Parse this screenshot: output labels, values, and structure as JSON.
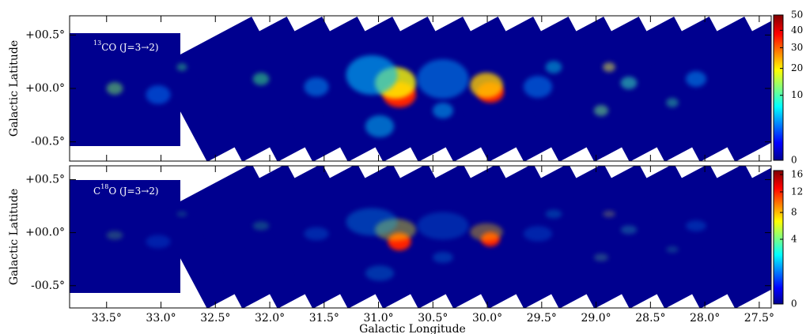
{
  "chart_data": [
    {
      "type": "map",
      "label_parts": [
        {
          "text": "13",
          "sup": true
        },
        {
          "text": "CO (J=3→2)"
        }
      ],
      "ylabel": "Galactic Latitude",
      "xlim": [
        33.84,
        27.39
      ],
      "ylim": [
        -0.68,
        0.68
      ],
      "yticks": [
        {
          "value": 0.5,
          "label": "+00.5°"
        },
        {
          "value": 0,
          "label": "+00.0°"
        },
        {
          "value": -0.5,
          "label": "-00.5°"
        }
      ],
      "clim": [
        0,
        50
      ],
      "colorbar_scale": "sqrt",
      "cticks": [
        0,
        10,
        20,
        30,
        40,
        50
      ],
      "colormap": "jet"
    },
    {
      "type": "map",
      "label_parts": [
        {
          "text": "C"
        },
        {
          "text": "18",
          "sup": true
        },
        {
          "text": "O (J=3→2)"
        }
      ],
      "ylabel": "Galactic Latitude",
      "xlim": [
        33.84,
        27.39
      ],
      "ylim": [
        -0.71,
        0.63
      ],
      "xlabel": "Galactic Longitude",
      "xticks": [
        {
          "value": 33.5,
          "label": "33.5°"
        },
        {
          "value": 33,
          "label": "33.0°"
        },
        {
          "value": 32.5,
          "label": "32.5°"
        },
        {
          "value": 32,
          "label": "32.0°"
        },
        {
          "value": 31.5,
          "label": "31.5°"
        },
        {
          "value": 31,
          "label": "31.0°"
        },
        {
          "value": 30.5,
          "label": "30.5°"
        },
        {
          "value": 30,
          "label": "30.0°"
        },
        {
          "value": 29.5,
          "label": "29.5°"
        },
        {
          "value": 29,
          "label": "29.0°"
        },
        {
          "value": 28.5,
          "label": "28.5°"
        },
        {
          "value": 28,
          "label": "28.0°"
        },
        {
          "value": 27.5,
          "label": "27.5°"
        }
      ],
      "yticks": [
        {
          "value": 0.5,
          "label": "+00.5°"
        },
        {
          "value": 0,
          "label": "+00.0°"
        },
        {
          "value": -0.5,
          "label": "-00.5°"
        }
      ],
      "clim": [
        0,
        17
      ],
      "colorbar_scale": "sqrt",
      "cticks": [
        0,
        4,
        8,
        12,
        16
      ],
      "colormap": "jet"
    }
  ]
}
